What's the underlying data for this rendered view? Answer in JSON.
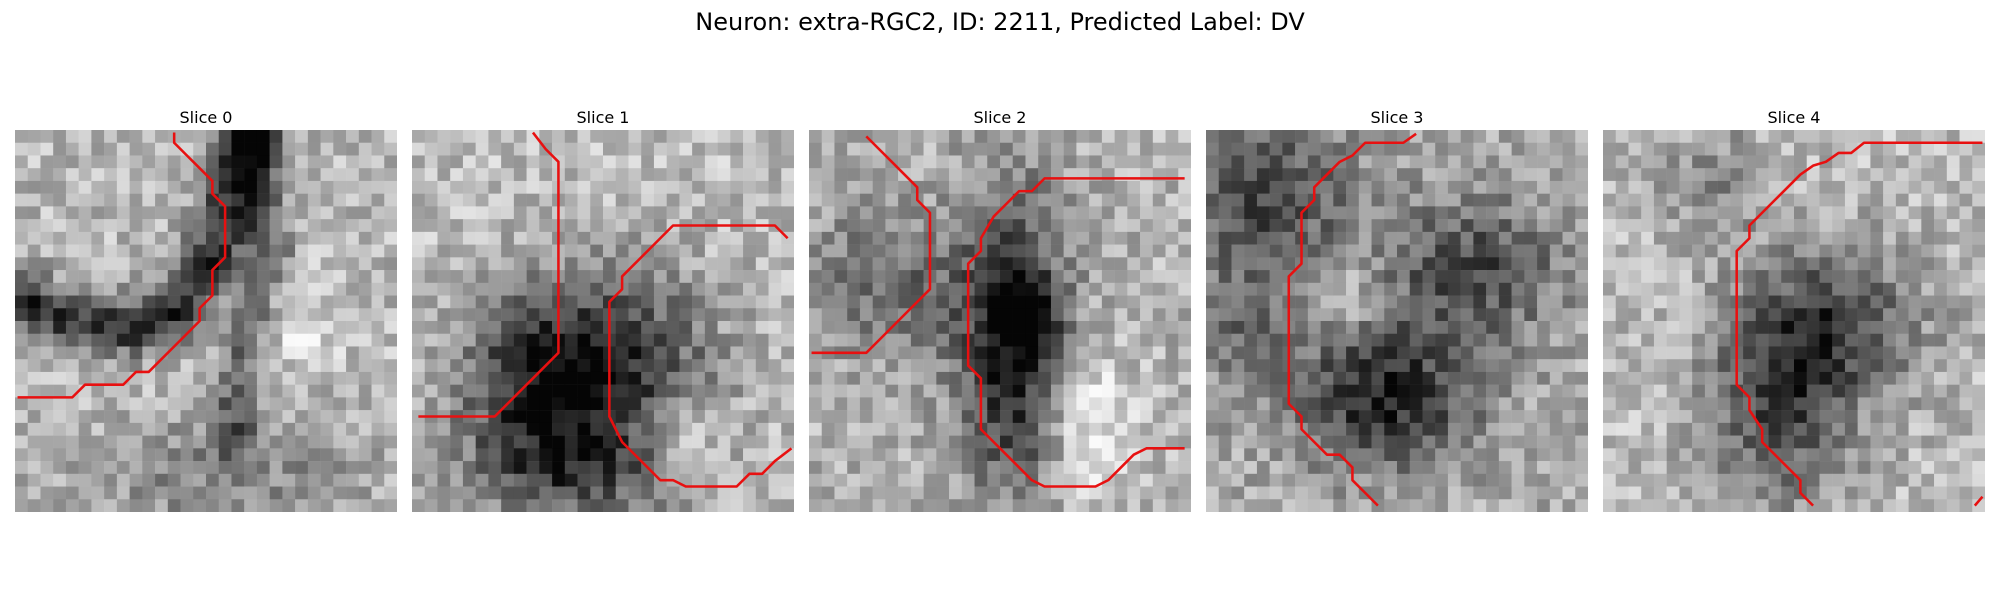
{
  "figure": {
    "title": "Neuron: extra-RGC2, ID: 2211, Predicted Label: DV"
  },
  "colors": {
    "contour": "#e81010",
    "background": "#ffffff"
  },
  "slices": [
    {
      "title": "Slice 0"
    },
    {
      "title": "Slice 1"
    },
    {
      "title": "Slice 2"
    },
    {
      "title": "Slice 3"
    },
    {
      "title": "Slice 4"
    }
  ]
}
